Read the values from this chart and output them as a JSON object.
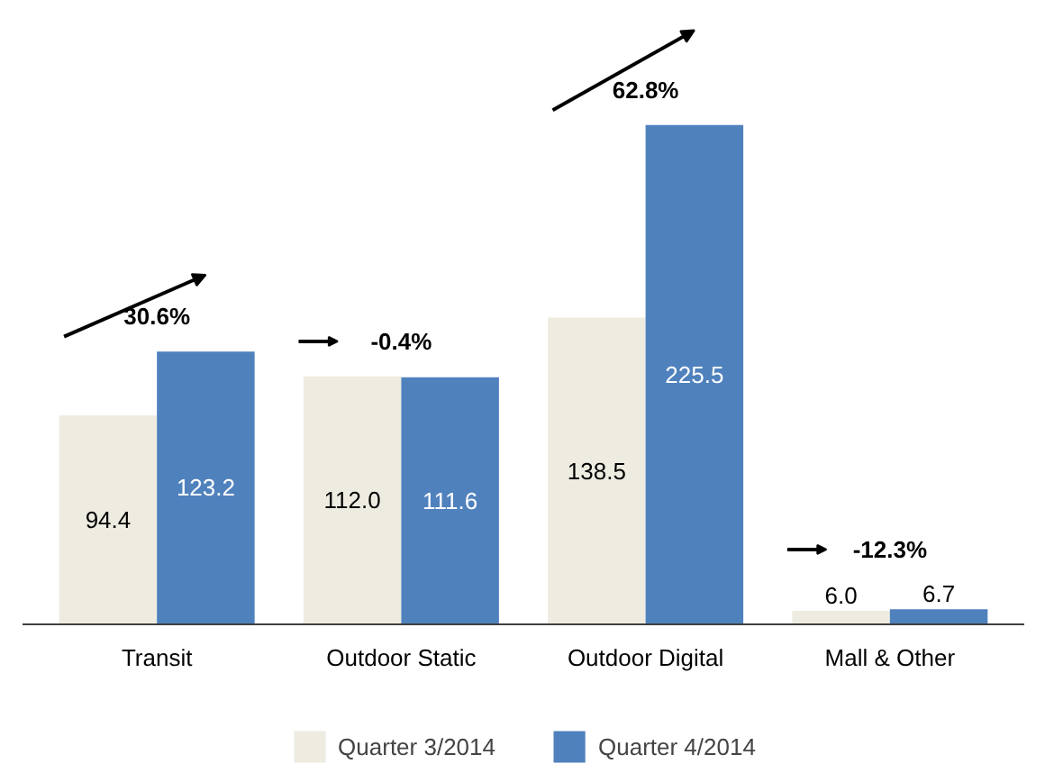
{
  "chart_data": {
    "type": "bar",
    "categories": [
      "Transit",
      "Outdoor Static",
      "Outdoor Digital",
      "Mall & Other"
    ],
    "series": [
      {
        "name": "Quarter 3/2014",
        "color": "#eeece1",
        "values": [
          94.4,
          112.0,
          138.5,
          6.0
        ],
        "value_labels": [
          "94.4",
          "112.0",
          "138.5",
          "6.0"
        ]
      },
      {
        "name": "Quarter 4/2014",
        "color": "#4f81bd",
        "values": [
          123.2,
          111.6,
          225.5,
          6.7
        ],
        "value_labels": [
          "123.2",
          "111.6",
          "225.5",
          "6.7"
        ]
      }
    ],
    "annotations": [
      {
        "text": "30.6%",
        "x": "Transit",
        "y": 123.2
      },
      {
        "text": "-0.4%",
        "x": "Outdoor Static",
        "y": 112.0
      },
      {
        "text": "62.8%",
        "x": "Outdoor Digital",
        "y": 225.5
      },
      {
        "text": "-12.3%",
        "x": "Mall & Other",
        "y": 6.7
      }
    ],
    "grid": false,
    "legend": "bottom"
  }
}
